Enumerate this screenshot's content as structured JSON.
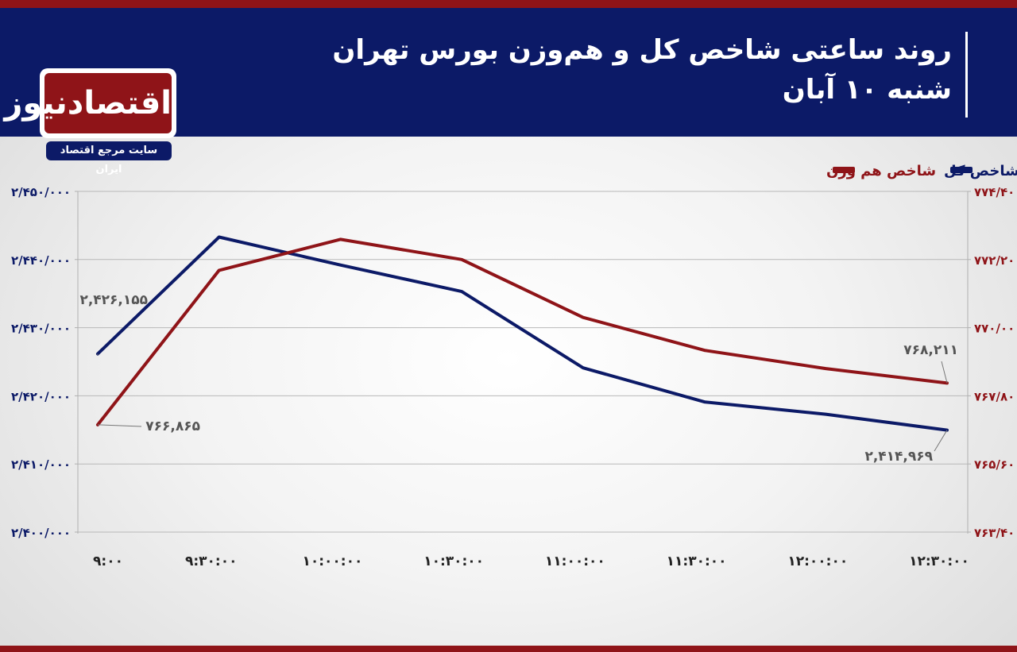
{
  "header": {
    "title_line1": "روند ساعتی شاخص کل و هم‌وزن بورس تهران",
    "title_line2": "شنبه ۱۰ آبان"
  },
  "logo": {
    "name": "اقتصادنیوز",
    "tagline": "سایت مرجع اقتصاد ایران"
  },
  "colors": {
    "header_bg": "#0c1a67",
    "accent_red": "#8f1418",
    "series_total": "#0c1a67",
    "series_equal": "#8f1418"
  },
  "chart_data": {
    "type": "line",
    "legend_position": "top-right",
    "grid": true,
    "categories": [
      "۹:۰۰",
      "۹:۳۰:۰۰",
      "۱۰:۰۰:۰۰",
      "۱۰:۳۰:۰۰",
      "۱۱:۰۰:۰۰",
      "۱۱:۳۰:۰۰",
      "۱۲:۰۰:۰۰",
      "۱۲:۳۰:۰۰"
    ],
    "left_axis": {
      "ylim": [
        2400000,
        2450000
      ],
      "ticks": [
        2450000,
        2440000,
        2430000,
        2420000,
        2410000,
        2400000
      ],
      "tick_labels": [
        "۲/۴۵۰/۰۰۰",
        "۲/۴۴۰/۰۰۰",
        "۲/۴۳۰/۰۰۰",
        "۲/۴۲۰/۰۰۰",
        "۲/۴۱۰/۰۰۰",
        "۲/۴۰۰/۰۰۰"
      ]
    },
    "right_axis": {
      "ylim": [
        763400,
        774400
      ],
      "ticks": [
        774400,
        772200,
        770000,
        767800,
        765600,
        763400
      ],
      "tick_labels": [
        "۷۷۴/۴۰۰",
        "۷۷۲/۲۰۰",
        "۷۷۰/۰۰۰",
        "۷۶۷/۸۰۰",
        "۷۶۵/۶۰۰",
        "۷۶۳/۴۰۰"
      ]
    },
    "series": [
      {
        "name": "شاخص کل",
        "axis": "left",
        "color": "#0c1a67",
        "values": [
          2426155,
          2443300,
          2439200,
          2435300,
          2424100,
          2419100,
          2417300,
          2414969
        ]
      },
      {
        "name": "شاخص هم وزن",
        "axis": "right",
        "color": "#8f1418",
        "values": [
          766865,
          771850,
          772850,
          772200,
          770330,
          769270,
          768680,
          768211
        ]
      }
    ],
    "annotations": [
      {
        "series": 0,
        "index": 0,
        "text": "۲,۴۲۶,۱۵۵"
      },
      {
        "series": 1,
        "index": 0,
        "text": "۷۶۶,۸۶۵"
      },
      {
        "series": 1,
        "index": 7,
        "text": "۷۶۸,۲۱۱"
      },
      {
        "series": 0,
        "index": 7,
        "text": "۲,۴۱۴,۹۶۹"
      }
    ]
  }
}
